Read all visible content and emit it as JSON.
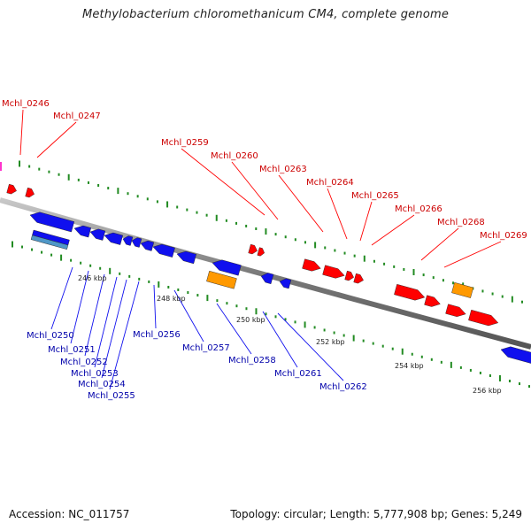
{
  "title": "Methylobacterium chloromethanicum CM4, complete genome",
  "footer": {
    "accession": "Accession: NC_011757",
    "topology": "Topology: circular; Length: 5,777,908 bp; Genes: 5,249"
  },
  "colors": {
    "plus_strand": "#ff0000",
    "minus_strand": "#1010ee",
    "rna": "#ff9900",
    "label_plus": "#cc0000",
    "label_minus": "#0000aa",
    "backbone": "#888888",
    "tick": "#228b22"
  },
  "scale_labels": [
    "246 kbp",
    "248 kbp",
    "250 kbp",
    "252 kbp",
    "254 kbp",
    "256 kbp"
  ],
  "top_labels": [
    "Mchl_0246",
    "Mchl_0247",
    "Mchl_0259",
    "Mchl_0260",
    "Mchl_0263",
    "Mchl_0264",
    "Mchl_0265",
    "Mchl_0266",
    "Mchl_0268",
    "Mchl_0269"
  ],
  "bottom_labels": [
    "Mchl_0250",
    "Mchl_0251",
    "Mchl_0252",
    "Mchl_0253",
    "Mchl_0254",
    "Mchl_0255",
    "Mchl_0256",
    "Mchl_0257",
    "Mchl_0258",
    "Mchl_0261",
    "Mchl_0262"
  ]
}
